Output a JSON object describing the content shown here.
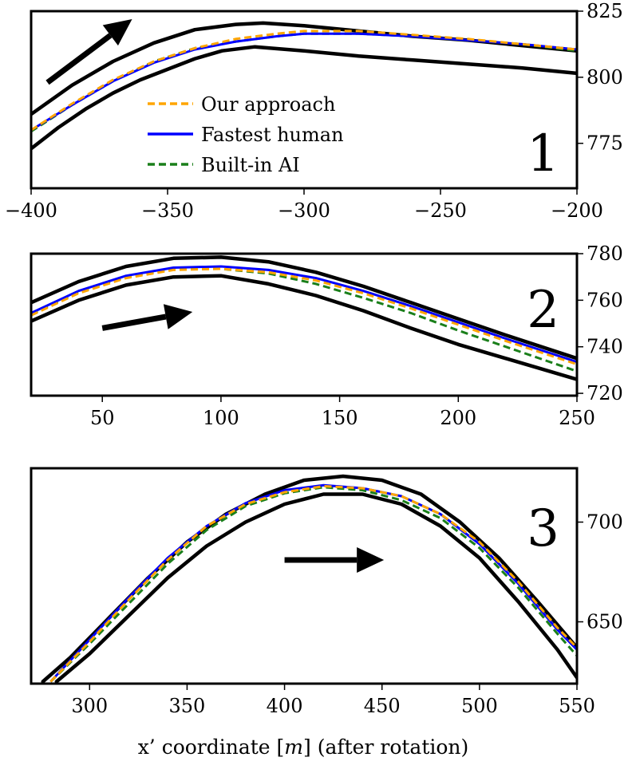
{
  "chart_data": [
    {
      "type": "line",
      "panel_label": "1",
      "xlim": [
        -400,
        -200
      ],
      "ylim": [
        758,
        825
      ],
      "xticks": [
        -400,
        -350,
        -300,
        -250,
        -200
      ],
      "yticks": [
        775,
        800,
        825
      ],
      "y_axis_side": "right",
      "grid": false,
      "legend": "center-left",
      "arrow": {
        "from": [
          -394,
          798
        ],
        "to": [
          -363,
          822
        ]
      },
      "boundaries": [
        {
          "name": "outer edge",
          "x": [
            -400,
            -385,
            -370,
            -355,
            -340,
            -325,
            -315,
            -300,
            -280,
            -260,
            -240,
            -220,
            -200
          ],
          "y": [
            786,
            797,
            806,
            813,
            818,
            820,
            820.5,
            819.5,
            817.5,
            815.5,
            814,
            812,
            810
          ]
        },
        {
          "name": "inner edge",
          "x": [
            -400,
            -390,
            -380,
            -370,
            -360,
            -350,
            -340,
            -330,
            -318,
            -300,
            -280,
            -260,
            -240,
            -220,
            -200
          ],
          "y": [
            773,
            781,
            788,
            794,
            799,
            803,
            807,
            810,
            811.5,
            810,
            808,
            806.5,
            805,
            803.5,
            801.5
          ]
        }
      ],
      "series": [
        {
          "name": "Our approach",
          "color": "#FFA500",
          "dash": true,
          "x": [
            -400,
            -385,
            -370,
            -355,
            -340,
            -325,
            -310,
            -300,
            -280,
            -260,
            -240,
            -220,
            -200
          ],
          "y": [
            780,
            790,
            799,
            806,
            811,
            814.5,
            816.5,
            817.5,
            817.5,
            816,
            814.5,
            812.5,
            810.5
          ]
        },
        {
          "name": "Fastest human",
          "color": "#0000FF",
          "dash": false,
          "x": [
            -400,
            -385,
            -370,
            -355,
            -340,
            -325,
            -310,
            -300,
            -280,
            -260,
            -240,
            -220,
            -200
          ],
          "y": [
            780,
            789.5,
            798.5,
            805.5,
            810.5,
            813.5,
            815.5,
            816.5,
            816.5,
            815.5,
            814,
            812.5,
            810.5
          ]
        },
        {
          "name": "Built-in AI",
          "color": "#1A7F1A",
          "dash": true,
          "x": [
            -400,
            -385,
            -370,
            -355,
            -340,
            -325,
            -310,
            -300,
            -280,
            -260,
            -240,
            -220,
            -200
          ],
          "y": [
            779.5,
            789.5,
            798.5,
            806,
            811,
            813.5,
            815.5,
            816.5,
            816.5,
            815.5,
            814,
            812.5,
            810
          ]
        }
      ]
    },
    {
      "type": "line",
      "panel_label": "2",
      "xlim": [
        20,
        250
      ],
      "ylim": [
        719,
        780
      ],
      "xticks": [
        50,
        100,
        150,
        200,
        250
      ],
      "yticks": [
        720,
        740,
        760,
        780
      ],
      "y_axis_side": "right",
      "grid": false,
      "arrow": {
        "from": [
          50,
          748
        ],
        "to": [
          88,
          755
        ]
      },
      "boundaries": [
        {
          "name": "outer edge",
          "x": [
            20,
            40,
            60,
            80,
            100,
            120,
            140,
            160,
            180,
            200,
            220,
            250
          ],
          "y": [
            759,
            768,
            774.5,
            778,
            778.5,
            776.5,
            772,
            766,
            759,
            752,
            745,
            735
          ]
        },
        {
          "name": "inner edge",
          "x": [
            20,
            40,
            60,
            80,
            100,
            120,
            140,
            160,
            180,
            200,
            220,
            250
          ],
          "y": [
            751,
            760,
            766.5,
            770,
            770.5,
            767,
            762,
            755.5,
            748,
            741,
            735,
            726
          ]
        }
      ],
      "series": [
        {
          "name": "Our approach",
          "color": "#FFA500",
          "dash": true,
          "x": [
            20,
            40,
            60,
            80,
            100,
            120,
            140,
            160,
            180,
            200,
            220,
            250
          ],
          "y": [
            753.5,
            763,
            769.5,
            773,
            773.5,
            772,
            768.5,
            763,
            756.5,
            749.5,
            742.5,
            732.5
          ]
        },
        {
          "name": "Fastest human",
          "color": "#0000FF",
          "dash": false,
          "x": [
            20,
            40,
            60,
            80,
            100,
            120,
            140,
            160,
            180,
            200,
            220,
            250
          ],
          "y": [
            754.5,
            764,
            770.5,
            774,
            774.5,
            773,
            769.5,
            764,
            757.5,
            750.5,
            743.5,
            733.5
          ]
        },
        {
          "name": "Built-in AI",
          "color": "#1A7F1A",
          "dash": true,
          "x": [
            20,
            40,
            60,
            80,
            100,
            120,
            140,
            160,
            180,
            200,
            220,
            250
          ],
          "y": [
            754,
            763.5,
            770,
            773.5,
            773.5,
            771.5,
            767,
            761,
            754.5,
            747,
            740,
            729.5
          ]
        }
      ]
    },
    {
      "type": "line",
      "panel_label": "3",
      "xlim": [
        270,
        550
      ],
      "ylim": [
        619,
        727
      ],
      "xticks": [
        300,
        350,
        400,
        450,
        500,
        550
      ],
      "yticks": [
        650,
        700
      ],
      "y_axis_side": "right",
      "grid": false,
      "arrow": {
        "from": [
          400,
          681
        ],
        "to": [
          451,
          681
        ]
      },
      "boundaries": [
        {
          "name": "outer edge",
          "x": [
            276,
            290,
            310,
            330,
            350,
            370,
            390,
            410,
            430,
            450,
            470,
            490,
            510,
            530,
            550
          ],
          "y": [
            620,
            632,
            652,
            672,
            690,
            704,
            714,
            721,
            723,
            721,
            714,
            700,
            682,
            660,
            637
          ]
        },
        {
          "name": "inner edge",
          "x": [
            283,
            300,
            320,
            340,
            360,
            380,
            400,
            420,
            440,
            460,
            480,
            500,
            520,
            540,
            550
          ],
          "y": [
            620,
            634,
            653,
            672,
            688,
            700,
            709,
            714,
            714,
            709,
            698,
            682,
            660,
            636,
            622
          ]
        }
      ],
      "series": [
        {
          "name": "Our approach",
          "color": "#FFA500",
          "dash": true,
          "x": [
            280,
            300,
            320,
            340,
            360,
            380,
            400,
            420,
            440,
            460,
            480,
            500,
            520,
            540,
            550
          ],
          "y": [
            620,
            640,
            661,
            681,
            698,
            709,
            715,
            718,
            717,
            713,
            704,
            690,
            670,
            647,
            637
          ]
        },
        {
          "name": "Fastest human",
          "color": "#0000FF",
          "dash": false,
          "x": [
            280,
            300,
            320,
            340,
            360,
            380,
            400,
            420,
            440,
            460,
            480,
            500,
            520,
            540,
            550
          ],
          "y": [
            620,
            641,
            662,
            682,
            698,
            709.5,
            716,
            718.5,
            717,
            713,
            704,
            689,
            669,
            646,
            636
          ]
        },
        {
          "name": "Built-in AI",
          "color": "#1A7F1A",
          "dash": true,
          "x": [
            280,
            300,
            320,
            340,
            360,
            380,
            400,
            420,
            440,
            460,
            480,
            500,
            520,
            540,
            550
          ],
          "y": [
            620,
            639,
            659,
            679,
            696,
            708,
            714.5,
            717.5,
            716,
            711,
            702,
            687,
            667,
            644,
            633
          ]
        }
      ]
    }
  ],
  "xlabel": {
    "prefix": "x’ coordinate [",
    "var": "m",
    "suffix": "] (after rotation)"
  }
}
